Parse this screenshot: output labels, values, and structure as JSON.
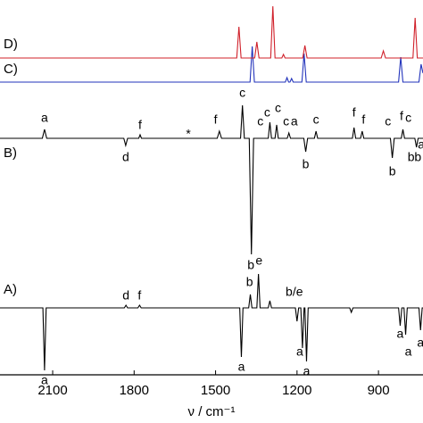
{
  "chart_data": {
    "type": "line",
    "x_label": "ν / cm⁻¹",
    "xlim": [
      2294,
      736
    ],
    "xticks": [
      2100,
      1800,
      1500,
      1200,
      900
    ],
    "series": [
      {
        "name": "A)",
        "color": "#000000",
        "x": [
          2294,
          2136,
          2130,
          2124,
          1836,
          1830,
          1824,
          1786,
          1780,
          1774,
          1411,
          1405,
          1399,
          1378,
          1372,
          1366,
          1348,
          1342,
          1336,
          1306,
          1300,
          1294,
          1206,
          1200,
          1194,
          1186,
          1180,
          1174,
          1171,
          1165,
          1159,
          1006,
          1000,
          994,
          826,
          820,
          814,
          806,
          800,
          794,
          751,
          745,
          739,
          736
        ],
        "values": [
          0,
          0,
          -70,
          0,
          0,
          3,
          0,
          0,
          3,
          0,
          0,
          -55,
          0,
          0,
          15,
          0,
          0,
          38,
          0,
          0,
          8,
          0,
          0,
          -15,
          0,
          0,
          -45,
          0,
          0,
          -60,
          0,
          0,
          -5,
          0,
          0,
          -20,
          0,
          0,
          -30,
          0,
          0,
          -25,
          0,
          0
        ],
        "annotations": [
          {
            "text": "a",
            "x": 2130,
            "y": -82
          },
          {
            "text": "d",
            "x": 1830,
            "y": 13
          },
          {
            "text": "f",
            "x": 1780,
            "y": 13
          },
          {
            "text": "a",
            "x": 1405,
            "y": -67
          },
          {
            "text": "b",
            "x": 1375,
            "y": 28
          },
          {
            "text": "e",
            "x": 1340,
            "y": 52
          },
          {
            "text": "b/e",
            "x": 1210,
            "y": 17
          },
          {
            "text": "a",
            "x": 1190,
            "y": -50
          },
          {
            "text": "a",
            "x": 1165,
            "y": -72
          },
          {
            "text": "a",
            "x": 820,
            "y": -30
          },
          {
            "text": "a",
            "x": 790,
            "y": -50
          },
          {
            "text": "a",
            "x": 745,
            "y": -40
          }
        ]
      },
      {
        "name": "B)",
        "color": "#000000",
        "x": [
          2294,
          2138,
          2130,
          2122,
          1838,
          1831,
          1824,
          1783,
          1778,
          1773,
          1494,
          1486,
          1478,
          1408,
          1401,
          1394,
          1376,
          1368,
          1360,
          1306,
          1300,
          1294,
          1281,
          1275,
          1269,
          1236,
          1230,
          1224,
          1175,
          1168,
          1161,
          1136,
          1130,
          1124,
          996,
          990,
          984,
          966,
          960,
          954,
          856,
          849,
          842,
          816,
          810,
          804,
          766,
          760,
          754,
          736
        ],
        "values": [
          0,
          0,
          10,
          0,
          0,
          -8,
          0,
          0,
          4,
          0,
          0,
          8,
          0,
          0,
          37,
          0,
          0,
          -130,
          0,
          0,
          18,
          0,
          0,
          15,
          0,
          0,
          6,
          0,
          0,
          -15,
          0,
          0,
          8,
          0,
          0,
          12,
          0,
          0,
          8,
          0,
          0,
          -22,
          0,
          0,
          10,
          0,
          0,
          -10,
          0,
          0
        ],
        "annotations": [
          {
            "text": "a",
            "x": 2130,
            "y": 22
          },
          {
            "text": "d",
            "x": 1831,
            "y": -22
          },
          {
            "text": "f",
            "x": 1778,
            "y": 14
          },
          {
            "text": "*",
            "x": 1600,
            "y": 4
          },
          {
            "text": "f",
            "x": 1500,
            "y": 20
          },
          {
            "text": "c",
            "x": 1401,
            "y": 50
          },
          {
            "text": "c",
            "x": 1335,
            "y": 18
          },
          {
            "text": "c",
            "x": 1310,
            "y": 28
          },
          {
            "text": "c",
            "x": 1270,
            "y": 33
          },
          {
            "text": "c",
            "x": 1240,
            "y": 18
          },
          {
            "text": "a",
            "x": 1210,
            "y": 18
          },
          {
            "text": "c",
            "x": 1130,
            "y": 20
          },
          {
            "text": "b",
            "x": 1168,
            "y": -30
          },
          {
            "text": "b",
            "x": 1370,
            "y": -143
          },
          {
            "text": "f",
            "x": 990,
            "y": 28
          },
          {
            "text": "f",
            "x": 955,
            "y": 20
          },
          {
            "text": "c",
            "x": 865,
            "y": 18
          },
          {
            "text": "f",
            "x": 815,
            "y": 24
          },
          {
            "text": "c",
            "x": 790,
            "y": 22
          },
          {
            "text": "b",
            "x": 849,
            "y": -38
          },
          {
            "text": "b",
            "x": 780,
            "y": -22
          },
          {
            "text": "b",
            "x": 755,
            "y": -22
          },
          {
            "text": "a",
            "x": 742,
            "y": -8
          }
        ]
      },
      {
        "name": "C)",
        "color": "#2233bb",
        "x": [
          2294,
          1373,
          1365,
          1357,
          1243,
          1237,
          1231,
          1226,
          1220,
          1214,
          1182,
          1174,
          1166,
          826,
          818,
          810,
          751,
          743,
          736
        ],
        "values": [
          0,
          0,
          40,
          0,
          0,
          5,
          0,
          0,
          4,
          0,
          0,
          32,
          0,
          0,
          28,
          0,
          0,
          20,
          10
        ]
      },
      {
        "name": "D)",
        "color": "#d0202a",
        "x": [
          2294,
          1422,
          1414,
          1406,
          1356,
          1348,
          1340,
          1297,
          1289,
          1281,
          1256,
          1250,
          1244,
          1179,
          1171,
          1163,
          890,
          882,
          874,
          773,
          765,
          757,
          736
        ],
        "values": [
          0,
          0,
          35,
          0,
          0,
          18,
          0,
          0,
          58,
          0,
          0,
          4,
          0,
          0,
          14,
          0,
          0,
          8,
          0,
          0,
          45,
          0,
          0
        ]
      }
    ]
  }
}
